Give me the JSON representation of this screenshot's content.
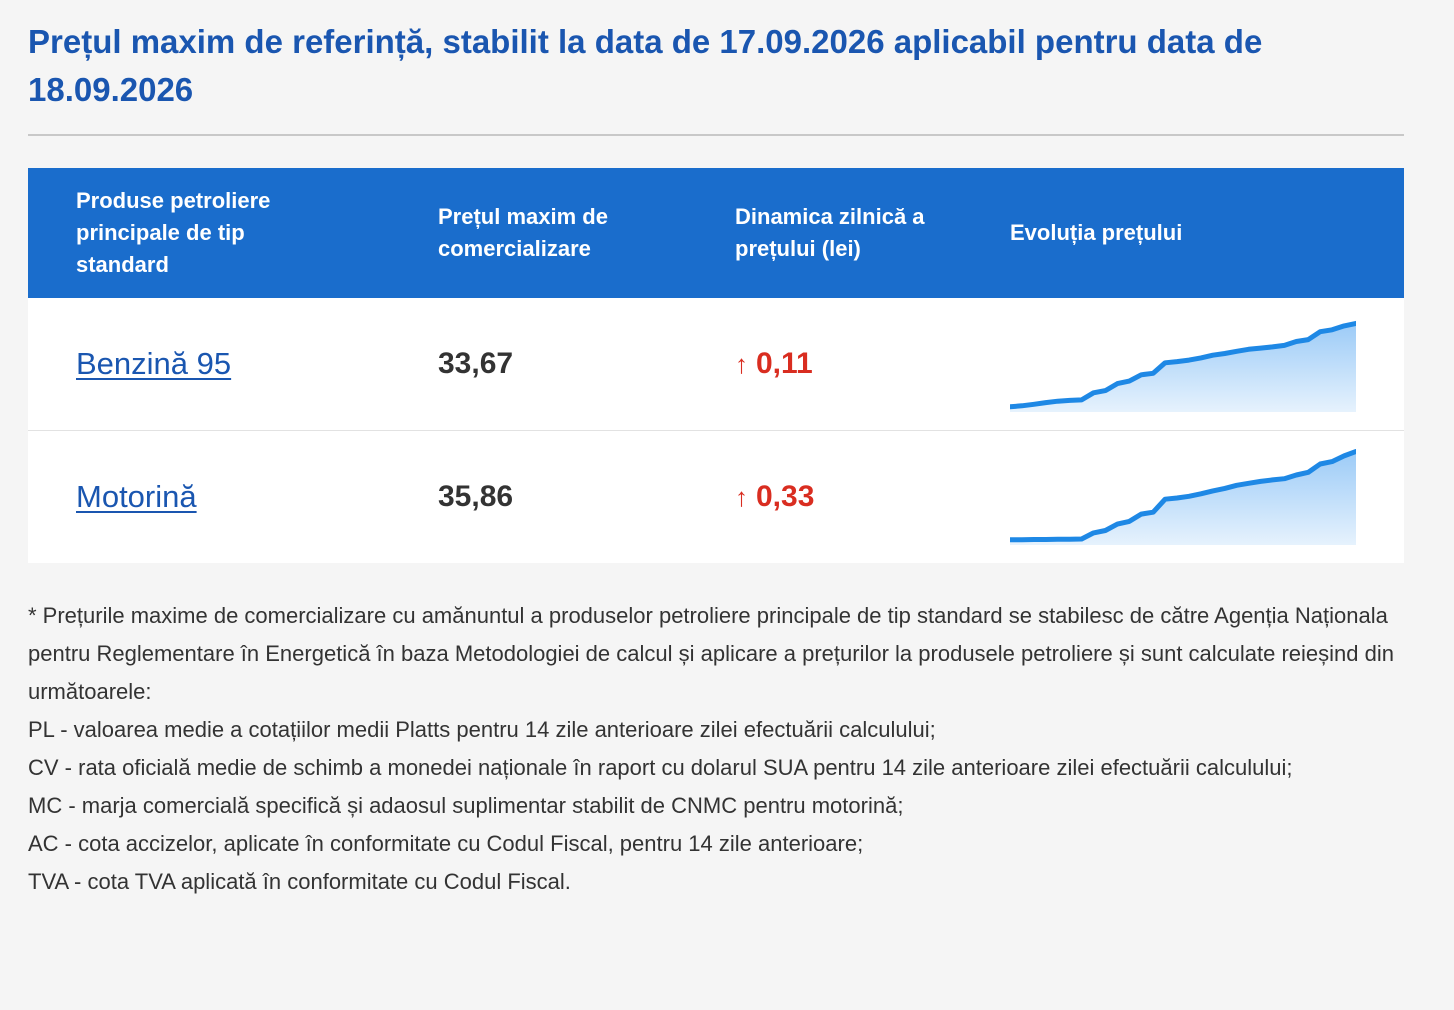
{
  "title": "Prețul maxim de referință, stabilit la data de 17.09.2026 aplicabil pentru data de 18.09.2026",
  "table": {
    "headers": {
      "product": "Produse petroliere principale de tip standard",
      "price": "Prețul maxim de comercializare",
      "dynamics": "Dinamica zilnică a prețului (lei)",
      "evolution": "Evoluția prețului"
    },
    "rows": [
      {
        "product": "Benzină 95",
        "price": "33,67",
        "arrow": "↑",
        "change": "0,11",
        "trend": [
          0.5,
          0.9,
          1.5,
          2.2,
          2.8,
          3.1,
          3.3,
          6.2,
          7.1,
          10.0,
          11.0,
          13.6,
          14.2,
          18.5,
          19.0,
          19.6,
          20.5,
          21.6,
          22.3,
          23.2,
          24.0,
          24.5,
          25.0,
          25.6,
          27.2,
          28.0,
          31.2,
          32.0,
          33.6,
          34.6
        ]
      },
      {
        "product": "Motorină",
        "price": "35,86",
        "arrow": "↑",
        "change": "0,33",
        "trend": [
          0.5,
          0.5,
          0.6,
          0.6,
          0.7,
          0.7,
          0.8,
          3.3,
          4.3,
          6.9,
          8.0,
          11.0,
          11.8,
          17.1,
          17.6,
          18.3,
          19.3,
          20.5,
          21.5,
          22.8,
          23.6,
          24.4,
          25.0,
          25.5,
          27.0,
          28.1,
          31.5,
          32.5,
          34.8,
          36.6
        ]
      }
    ]
  },
  "notes": [
    "* Prețurile maxime de comercializare cu amănuntul a produselor petroliere principale de tip standard se stabilesc de către Agenția Naționala pentru Reglementare în Energetică în baza Metodologiei de calcul și aplicare a prețurilor la produsele petroliere și sunt calculate reieșind din următoarele:",
    "PL - valoarea medie a cotațiilor medii Platts pentru 14 zile anterioare zilei efectuării calculului;",
    "CV - rata oficială medie de schimb a monedei naționale în raport cu dolarul SUA pentru 14 zile anterioare zilei efectuării calculului;",
    "MC - marja comercială specifică și adaosul suplimentar stabilit de CNMC pentru motorină;",
    "AC - cota accizelor, aplicate în conformitate cu Codul Fiscal, pentru 14 zile anterioare;",
    "TVA - cota TVA aplicată în conformitate cu Codul Fiscal."
  ],
  "colors": {
    "accent": "#1a56b0",
    "header_bg": "#1a6dcc",
    "increase": "#d92d20",
    "spark_line": "#1e88e5"
  }
}
